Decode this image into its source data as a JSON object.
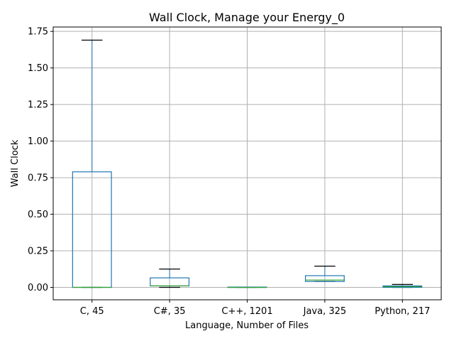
{
  "chart_data": {
    "type": "box",
    "title": "Wall Clock, Manage your Energy_0",
    "xlabel": "Language, Number of Files",
    "ylabel": "Wall Clock",
    "ylim": [
      -0.085,
      1.78
    ],
    "yticks": [
      0.0,
      0.25,
      0.5,
      0.75,
      1.0,
      1.25,
      1.5,
      1.75
    ],
    "ytick_labels": [
      "0.00",
      "0.25",
      "0.50",
      "0.75",
      "1.00",
      "1.25",
      "1.50",
      "1.75"
    ],
    "grid": true,
    "colors": {
      "box": "#1f77b4",
      "median": "#2ca02c",
      "cap": "#000000",
      "grid": "#b0b0b0"
    },
    "categories": [
      "C, 45",
      "C#, 35",
      "C++, 1201",
      "Java, 325",
      "Python, 217"
    ],
    "boxes": [
      {
        "label": "C, 45",
        "whislo": 0.0,
        "q1": 0.0,
        "median": 0.0,
        "q3": 0.79,
        "whishi": 1.69
      },
      {
        "label": "C#, 35",
        "whislo": 0.0,
        "q1": 0.01,
        "median": 0.01,
        "q3": 0.065,
        "whishi": 0.125
      },
      {
        "label": "C++, 1201",
        "whislo": 0.0,
        "q1": 0.0,
        "median": 0.0,
        "q3": 0.002,
        "whishi": 0.002
      },
      {
        "label": "Java, 325",
        "whislo": 0.04,
        "q1": 0.04,
        "median": 0.05,
        "q3": 0.08,
        "whishi": 0.145
      },
      {
        "label": "Python, 217",
        "whislo": 0.0,
        "q1": 0.0,
        "median": 0.005,
        "q3": 0.01,
        "whishi": 0.02
      }
    ]
  }
}
